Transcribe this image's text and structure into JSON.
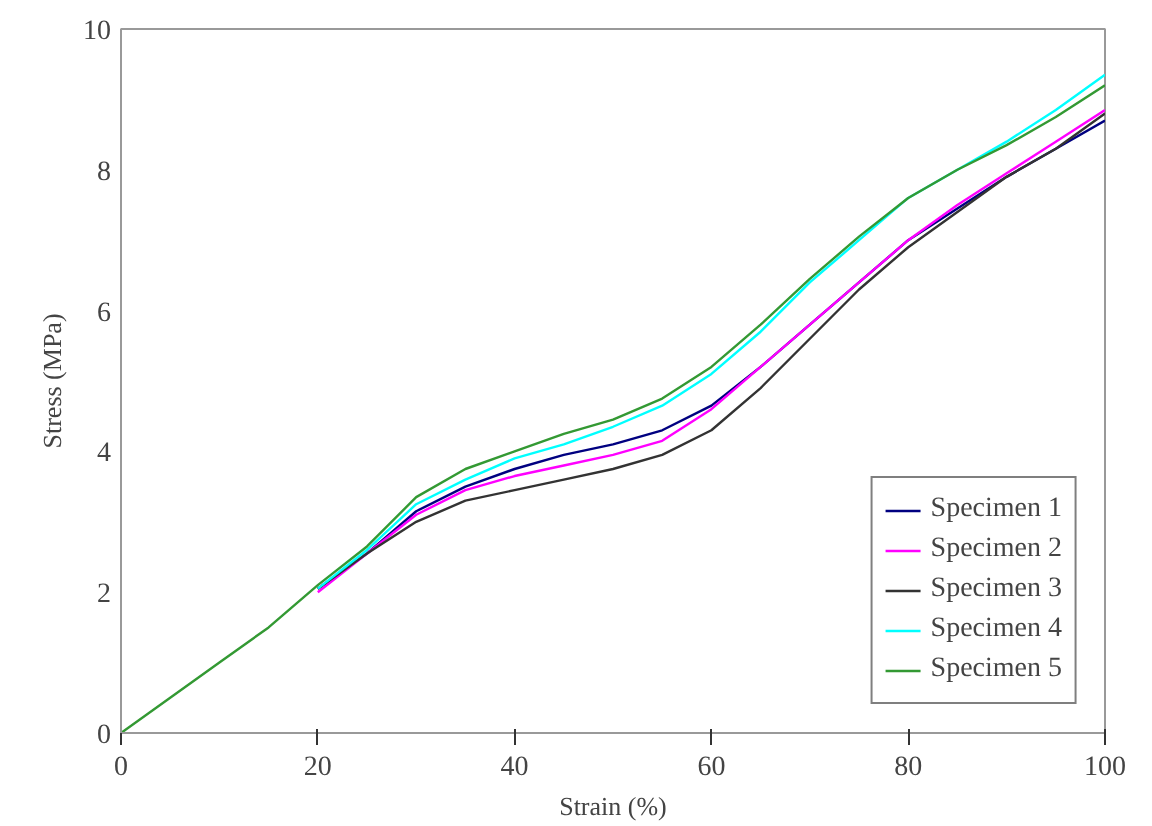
{
  "chart_data": {
    "type": "line",
    "xlabel": "Strain (%)",
    "ylabel": "Stress (MPa)",
    "x": [
      0,
      5,
      10,
      15,
      20,
      25,
      30,
      35,
      40,
      45,
      50,
      55,
      60,
      65,
      70,
      75,
      80,
      85,
      90,
      95,
      100
    ],
    "series": [
      {
        "name": "Specimen 1",
        "color": "#000080",
        "values": [
          null,
          null,
          null,
          null,
          2.05,
          2.55,
          3.15,
          3.5,
          3.75,
          3.95,
          4.1,
          4.3,
          4.65,
          5.2,
          5.8,
          6.4,
          7.0,
          7.45,
          7.9,
          8.3,
          8.7
        ]
      },
      {
        "name": "Specimen 2",
        "color": "#ff00ff",
        "values": [
          null,
          null,
          null,
          null,
          2.0,
          2.55,
          3.1,
          3.45,
          3.65,
          3.8,
          3.95,
          4.15,
          4.6,
          5.2,
          5.8,
          6.4,
          7.0,
          7.5,
          7.95,
          8.4,
          8.85
        ]
      },
      {
        "name": "Specimen 3",
        "color": "#333333",
        "values": [
          null,
          null,
          null,
          null,
          2.05,
          2.55,
          3.0,
          3.3,
          3.45,
          3.6,
          3.75,
          3.95,
          4.3,
          4.9,
          5.6,
          6.3,
          6.9,
          7.4,
          7.9,
          8.3,
          8.8
        ]
      },
      {
        "name": "Specimen 4",
        "color": "#00ffff",
        "values": [
          null,
          null,
          null,
          null,
          2.05,
          2.6,
          3.25,
          3.6,
          3.9,
          4.1,
          4.35,
          4.65,
          5.1,
          5.7,
          6.4,
          7.0,
          7.6,
          8.0,
          8.4,
          8.85,
          9.35
        ]
      },
      {
        "name": "Specimen 5",
        "color": "#339933",
        "values": [
          0,
          0.5,
          1.0,
          1.5,
          2.1,
          2.65,
          3.35,
          3.75,
          4.0,
          4.25,
          4.45,
          4.75,
          5.2,
          5.8,
          6.45,
          7.05,
          7.6,
          8.0,
          8.35,
          8.75,
          9.2
        ]
      }
    ],
    "xlim": [
      0,
      100
    ],
    "ylim": [
      0,
      10
    ],
    "xticks": [
      0,
      20,
      40,
      60,
      80,
      100
    ],
    "yticks": [
      0,
      2,
      4,
      6,
      8,
      10
    ],
    "grid": false,
    "legend": "bottom right",
    "marker": "none",
    "line_style": "solid"
  }
}
